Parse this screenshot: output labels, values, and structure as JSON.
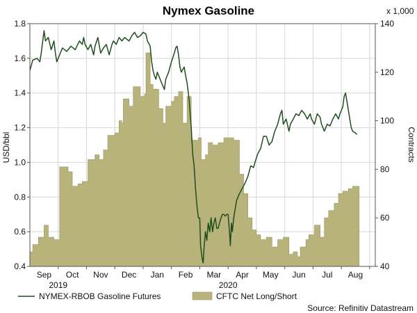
{
  "chart_data": {
    "type": "line",
    "title": "Nymex Gasoline",
    "ylabel_left": "USD/bbl",
    "ylabel_right": "Contracts",
    "right_unit_note": "x 1,000",
    "source": "Source: Refinitiv Datastream",
    "x_months": [
      "Sep",
      "Oct",
      "Nov",
      "Dec",
      "Jan",
      "Feb",
      "Mar",
      "Apr",
      "May",
      "Jun",
      "Jul",
      "Aug"
    ],
    "years": [
      {
        "label": "2019",
        "month_index": 1
      },
      {
        "label": "2020",
        "month_index": 7
      }
    ],
    "x_range": [
      0,
      12.2
    ],
    "ylim_left": [
      0.4,
      1.8
    ],
    "yticks_left": [
      "0.4",
      "0.6",
      "0.8",
      "1.0",
      "1.2",
      "1.4",
      "1.6",
      "1.8"
    ],
    "ylim_right": [
      40,
      140
    ],
    "yticks_right": [
      "40",
      "60",
      "80",
      "100",
      "120",
      "140"
    ],
    "grid": true,
    "legend": "bottom",
    "colors": {
      "line": "#1f4d1f",
      "area": "#b8b37a",
      "area_edge": "#9a9660",
      "grid": "#d6d6d6"
    },
    "series": [
      {
        "name": "NYMEX-RBOB Gasoline Futures",
        "axis": "left",
        "kind": "line",
        "points": [
          [
            0.0,
            1.53
          ],
          [
            0.1,
            1.59
          ],
          [
            0.25,
            1.6
          ],
          [
            0.35,
            1.58
          ],
          [
            0.4,
            1.63
          ],
          [
            0.5,
            1.76
          ],
          [
            0.55,
            1.7
          ],
          [
            0.65,
            1.72
          ],
          [
            0.75,
            1.65
          ],
          [
            0.85,
            1.7
          ],
          [
            0.9,
            1.63
          ],
          [
            0.95,
            1.58
          ],
          [
            1.05,
            1.62
          ],
          [
            1.15,
            1.66
          ],
          [
            1.3,
            1.64
          ],
          [
            1.45,
            1.67
          ],
          [
            1.6,
            1.65
          ],
          [
            1.75,
            1.7
          ],
          [
            1.85,
            1.68
          ],
          [
            1.9,
            1.72
          ],
          [
            1.95,
            1.68
          ],
          [
            2.05,
            1.65
          ],
          [
            2.15,
            1.68
          ],
          [
            2.25,
            1.62
          ],
          [
            2.3,
            1.67
          ],
          [
            2.4,
            1.72
          ],
          [
            2.5,
            1.63
          ],
          [
            2.6,
            1.66
          ],
          [
            2.7,
            1.68
          ],
          [
            2.8,
            1.62
          ],
          [
            2.9,
            1.68
          ],
          [
            2.95,
            1.7
          ],
          [
            3.05,
            1.68
          ],
          [
            3.15,
            1.72
          ],
          [
            3.25,
            1.7
          ],
          [
            3.35,
            1.72
          ],
          [
            3.5,
            1.7
          ],
          [
            3.6,
            1.73
          ],
          [
            3.7,
            1.75
          ],
          [
            3.8,
            1.72
          ],
          [
            3.9,
            1.73
          ],
          [
            4.0,
            1.75
          ],
          [
            4.1,
            1.74
          ],
          [
            4.15,
            1.7
          ],
          [
            4.25,
            1.67
          ],
          [
            4.3,
            1.58
          ],
          [
            4.35,
            1.53
          ],
          [
            4.4,
            1.5
          ],
          [
            4.45,
            1.48
          ],
          [
            4.5,
            1.52
          ],
          [
            4.6,
            1.48
          ],
          [
            4.65,
            1.46
          ],
          [
            4.75,
            1.42
          ],
          [
            4.8,
            1.48
          ],
          [
            4.9,
            1.52
          ],
          [
            5.0,
            1.58
          ],
          [
            5.1,
            1.63
          ],
          [
            5.15,
            1.66
          ],
          [
            5.2,
            1.67
          ],
          [
            5.25,
            1.62
          ],
          [
            5.3,
            1.55
          ],
          [
            5.35,
            1.52
          ],
          [
            5.45,
            1.55
          ],
          [
            5.5,
            1.5
          ],
          [
            5.55,
            1.46
          ],
          [
            5.62,
            1.37
          ],
          [
            5.7,
            1.2
          ],
          [
            5.75,
            1.05
          ],
          [
            5.8,
            0.98
          ],
          [
            5.85,
            0.85
          ],
          [
            5.9,
            0.75
          ],
          [
            5.95,
            0.68
          ],
          [
            6.0,
            0.68
          ],
          [
            6.03,
            0.52
          ],
          [
            6.08,
            0.45
          ],
          [
            6.12,
            0.42
          ],
          [
            6.15,
            0.5
          ],
          [
            6.2,
            0.6
          ],
          [
            6.25,
            0.55
          ],
          [
            6.3,
            0.65
          ],
          [
            6.35,
            0.6
          ],
          [
            6.4,
            0.68
          ],
          [
            6.45,
            0.6
          ],
          [
            6.5,
            0.65
          ],
          [
            6.55,
            0.68
          ],
          [
            6.6,
            0.62
          ],
          [
            6.65,
            0.62
          ],
          [
            6.7,
            0.65
          ],
          [
            6.75,
            0.68
          ],
          [
            6.8,
            0.7
          ],
          [
            6.85,
            0.7
          ],
          [
            6.9,
            0.69
          ],
          [
            6.95,
            0.7
          ],
          [
            7.0,
            0.7
          ],
          [
            7.05,
            0.6
          ],
          [
            7.08,
            0.52
          ],
          [
            7.12,
            0.65
          ],
          [
            7.15,
            0.6
          ],
          [
            7.2,
            0.68
          ],
          [
            7.3,
            0.78
          ],
          [
            7.4,
            0.82
          ],
          [
            7.5,
            0.85
          ],
          [
            7.6,
            0.88
          ],
          [
            7.7,
            0.92
          ],
          [
            7.8,
            0.98
          ],
          [
            7.9,
            0.97
          ],
          [
            7.95,
            1.0
          ],
          [
            8.05,
            1.05
          ],
          [
            8.15,
            1.08
          ],
          [
            8.25,
            1.15
          ],
          [
            8.35,
            1.15
          ],
          [
            8.45,
            1.1
          ],
          [
            8.55,
            1.12
          ],
          [
            8.65,
            1.18
          ],
          [
            8.75,
            1.22
          ],
          [
            8.85,
            1.28
          ],
          [
            8.9,
            1.3
          ],
          [
            8.95,
            1.22
          ],
          [
            9.05,
            1.25
          ],
          [
            9.15,
            1.18
          ],
          [
            9.2,
            1.22
          ],
          [
            9.3,
            1.25
          ],
          [
            9.4,
            1.28
          ],
          [
            9.5,
            1.27
          ],
          [
            9.6,
            1.3
          ],
          [
            9.7,
            1.28
          ],
          [
            9.8,
            1.25
          ],
          [
            9.9,
            1.28
          ],
          [
            9.95,
            1.25
          ],
          [
            10.05,
            1.22
          ],
          [
            10.15,
            1.28
          ],
          [
            10.25,
            1.26
          ],
          [
            10.3,
            1.22
          ],
          [
            10.4,
            1.18
          ],
          [
            10.5,
            1.22
          ],
          [
            10.6,
            1.21
          ],
          [
            10.7,
            1.25
          ],
          [
            10.8,
            1.28
          ],
          [
            10.9,
            1.25
          ],
          [
            10.95,
            1.28
          ],
          [
            11.05,
            1.32
          ],
          [
            11.1,
            1.38
          ],
          [
            11.15,
            1.4
          ],
          [
            11.2,
            1.35
          ],
          [
            11.25,
            1.3
          ],
          [
            11.3,
            1.25
          ],
          [
            11.35,
            1.2
          ],
          [
            11.4,
            1.18
          ],
          [
            11.5,
            1.17
          ],
          [
            11.55,
            1.16
          ]
        ]
      },
      {
        "name": "CFTC Net Long/Short",
        "axis": "right",
        "kind": "step-area",
        "points": [
          [
            0.0,
            46
          ],
          [
            0.1,
            49
          ],
          [
            0.3,
            52
          ],
          [
            0.5,
            57
          ],
          [
            0.65,
            52
          ],
          [
            0.85,
            51
          ],
          [
            1.05,
            81
          ],
          [
            1.35,
            79
          ],
          [
            1.5,
            73
          ],
          [
            1.7,
            74
          ],
          [
            1.85,
            75
          ],
          [
            2.05,
            84
          ],
          [
            2.3,
            86
          ],
          [
            2.45,
            84
          ],
          [
            2.6,
            88
          ],
          [
            2.75,
            94
          ],
          [
            3.0,
            95
          ],
          [
            3.15,
            100
          ],
          [
            3.25,
            99
          ],
          [
            3.3,
            109
          ],
          [
            3.5,
            106
          ],
          [
            3.65,
            114
          ],
          [
            3.9,
            110
          ],
          [
            4.05,
            111
          ],
          [
            4.1,
            128
          ],
          [
            4.25,
            115
          ],
          [
            4.35,
            113
          ],
          [
            4.55,
            105
          ],
          [
            4.7,
            99
          ],
          [
            4.8,
            106
          ],
          [
            5.0,
            108
          ],
          [
            5.1,
            110
          ],
          [
            5.25,
            112
          ],
          [
            5.4,
            99
          ],
          [
            5.55,
            110
          ],
          [
            5.7,
            92
          ],
          [
            5.95,
            93
          ],
          [
            6.05,
            84
          ],
          [
            6.2,
            86
          ],
          [
            6.3,
            91
          ],
          [
            6.45,
            90
          ],
          [
            6.65,
            91
          ],
          [
            6.85,
            93
          ],
          [
            7.0,
            93
          ],
          [
            7.2,
            92
          ],
          [
            7.4,
            78
          ],
          [
            7.55,
            70
          ],
          [
            7.7,
            60
          ],
          [
            7.85,
            55
          ],
          [
            8.0,
            53
          ],
          [
            8.15,
            51
          ],
          [
            8.35,
            52
          ],
          [
            8.55,
            48
          ],
          [
            8.75,
            51
          ],
          [
            8.95,
            52
          ],
          [
            9.15,
            45
          ],
          [
            9.3,
            46
          ],
          [
            9.45,
            44
          ],
          [
            9.55,
            48
          ],
          [
            9.75,
            51
          ],
          [
            9.85,
            53
          ],
          [
            10.05,
            57
          ],
          [
            10.25,
            52
          ],
          [
            10.4,
            60
          ],
          [
            10.55,
            63
          ],
          [
            10.75,
            66
          ],
          [
            10.9,
            70
          ],
          [
            11.05,
            71
          ],
          [
            11.25,
            72
          ],
          [
            11.4,
            73
          ],
          [
            11.55,
            73
          ]
        ]
      }
    ]
  }
}
